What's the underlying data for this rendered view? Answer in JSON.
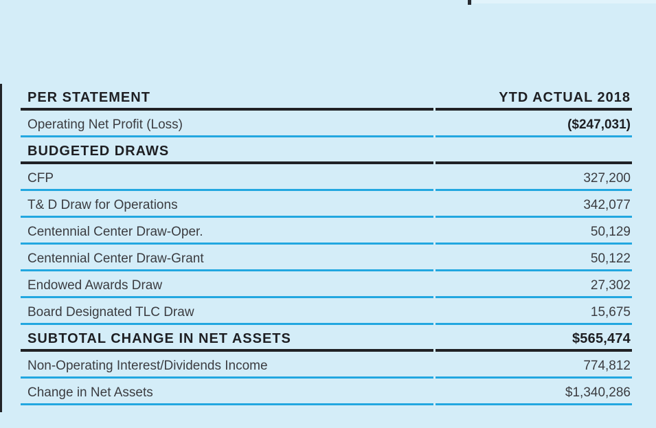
{
  "page": {
    "background_color": "#d4edf8",
    "accent_rule_color": "#22a7e0",
    "dark_rule_color": "#202125",
    "left_accent_bar_color": "#232428",
    "top_strip_color": "#e1f3fb"
  },
  "table": {
    "rows": [
      {
        "label": "PER STATEMENT",
        "value": "YTD ACTUAL 2018",
        "style": "header",
        "rule": "dark"
      },
      {
        "label": "Operating Net Profit (Loss)",
        "value": "($247,031)",
        "style": "data",
        "rule": "cyan",
        "value_bold": true
      },
      {
        "label": "BUDGETED DRAWS",
        "value": "",
        "style": "section",
        "rule": "dark"
      },
      {
        "label": "CFP",
        "value": "327,200",
        "style": "data",
        "rule": "cyan"
      },
      {
        "label": "T& D Draw for Operations",
        "value": "342,077",
        "style": "data",
        "rule": "cyan"
      },
      {
        "label": "Centennial Center Draw-Oper.",
        "value": "50,129",
        "style": "data",
        "rule": "cyan"
      },
      {
        "label": "Centennial Center Draw-Grant",
        "value": "50,122",
        "style": "data",
        "rule": "cyan"
      },
      {
        "label": "Endowed Awards Draw",
        "value": "27,302",
        "style": "data",
        "rule": "cyan"
      },
      {
        "label": "Board Designated TLC Draw",
        "value": "15,675",
        "style": "data",
        "rule": "cyan"
      },
      {
        "label": "SUBTOTAL CHANGE IN NET ASSETS",
        "value": "$565,474",
        "style": "subtotal",
        "rule": "dark"
      },
      {
        "label": "Non-Operating Interest/Dividends Income",
        "value": "774,812",
        "style": "data",
        "rule": "cyan"
      },
      {
        "label": "Change in Net Assets",
        "value": "$1,340,286",
        "style": "data",
        "rule": "cyan"
      }
    ]
  }
}
